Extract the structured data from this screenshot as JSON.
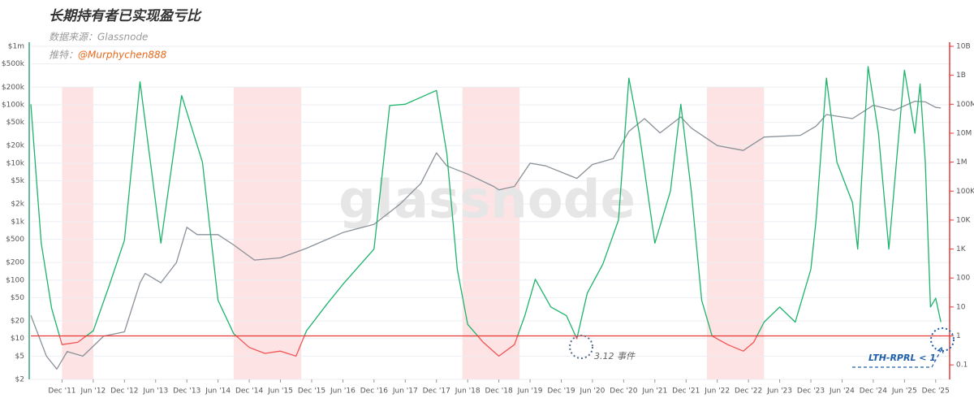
{
  "chart_data": {
    "type": "line",
    "title": "长期持有者已实现盈亏比",
    "subtitle": "数据来源：Glassnode",
    "credit_label": "推特：",
    "credit_handle": "@Murphychen888",
    "watermark": "glassnode",
    "log_scale": true,
    "grid": true,
    "xlim": [
      "2011-06",
      "2026-03"
    ],
    "xticks": [
      {
        "value": "2011-12",
        "label": "Dec '11"
      },
      {
        "value": "2012-06",
        "label": "Jun '12"
      },
      {
        "value": "2012-12",
        "label": "Dec '12"
      },
      {
        "value": "2013-06",
        "label": "Jun '13"
      },
      {
        "value": "2013-12",
        "label": "Dec '13"
      },
      {
        "value": "2014-06",
        "label": "Jun '14"
      },
      {
        "value": "2014-12",
        "label": "Dec '14"
      },
      {
        "value": "2015-06",
        "label": "Jun '15"
      },
      {
        "value": "2015-12",
        "label": "Dec '15"
      },
      {
        "value": "2016-06",
        "label": "Jun '16"
      },
      {
        "value": "2016-12",
        "label": "Dec '16"
      },
      {
        "value": "2017-06",
        "label": "Jun '17"
      },
      {
        "value": "2017-12",
        "label": "Dec '17"
      },
      {
        "value": "2018-06",
        "label": "Jun '18"
      },
      {
        "value": "2018-12",
        "label": "Dec '18"
      },
      {
        "value": "2019-06",
        "label": "Jun '19"
      },
      {
        "value": "2019-12",
        "label": "Dec '19"
      },
      {
        "value": "2020-06",
        "label": "Jun '20"
      },
      {
        "value": "2020-12",
        "label": "Dec '20"
      },
      {
        "value": "2021-06",
        "label": "Jun '21"
      },
      {
        "value": "2021-12",
        "label": "Dec '21"
      },
      {
        "value": "2022-06",
        "label": "Jun '22"
      },
      {
        "value": "2022-12",
        "label": "Dec '22"
      },
      {
        "value": "2023-06",
        "label": "Jun '23"
      },
      {
        "value": "2023-12",
        "label": "Dec '23"
      },
      {
        "value": "2024-06",
        "label": "Jun '24"
      },
      {
        "value": "2024-12",
        "label": "Dec '24"
      },
      {
        "value": "2025-06",
        "label": "Jun '25"
      },
      {
        "value": "2025-12",
        "label": "Dec '25"
      }
    ],
    "ylim": [
      2,
      1000000
    ],
    "yticks": [
      {
        "value": 1000000,
        "label": "$1m"
      },
      {
        "value": 500000,
        "label": "$500k"
      },
      {
        "value": 200000,
        "label": "$200k"
      },
      {
        "value": 100000,
        "label": "$100k"
      },
      {
        "value": 50000,
        "label": "$50k"
      },
      {
        "value": 20000,
        "label": "$20k"
      },
      {
        "value": 10000,
        "label": "$10k"
      },
      {
        "value": 5000,
        "label": "$5k"
      },
      {
        "value": 2000,
        "label": "$2k"
      },
      {
        "value": 1000,
        "label": "$1k"
      },
      {
        "value": 500,
        "label": "$500"
      },
      {
        "value": 200,
        "label": "$200"
      },
      {
        "value": 100,
        "label": "$100"
      },
      {
        "value": 50,
        "label": "$50"
      },
      {
        "value": 20,
        "label": "$20"
      },
      {
        "value": 10,
        "label": "$10"
      },
      {
        "value": 5,
        "label": "$5"
      },
      {
        "value": 2,
        "label": "$2"
      }
    ],
    "y2lim": [
      0.0316,
      10000000000
    ],
    "y2ticks": [
      {
        "value": 10000000000,
        "label": "10B"
      },
      {
        "value": 1000000000,
        "label": "1B"
      },
      {
        "value": 100000000,
        "label": "100M"
      },
      {
        "value": 10000000,
        "label": "10M"
      },
      {
        "value": 1000000,
        "label": "1M"
      },
      {
        "value": 100000,
        "label": "100K"
      },
      {
        "value": 10000,
        "label": "10K"
      },
      {
        "value": 1000,
        "label": "1K"
      },
      100,
      10,
      1,
      0.1
    ],
    "highlight_ranges": [
      [
        "2011-12",
        "2012-06"
      ],
      [
        "2014-09",
        "2015-10"
      ],
      [
        "2018-05",
        "2019-04"
      ],
      [
        "2022-04",
        "2023-03"
      ]
    ],
    "highlight_color": "#fde3e3",
    "reference_line": {
      "value": 1,
      "axis": "y2",
      "color": "#e53935"
    },
    "below_reference_color": "#f05454",
    "series": [
      {
        "color": "#8a9199",
        "axis": "y",
        "x": [
          "2011-06",
          "2011-09",
          "2011-11",
          "2012-01",
          "2012-04",
          "2012-08",
          "2012-12",
          "2013-03",
          "2013-04",
          "2013-07",
          "2013-10",
          "2013-12",
          "2014-02",
          "2014-06",
          "2014-09",
          "2015-01",
          "2015-06",
          "2015-11",
          "2016-06",
          "2016-12",
          "2017-05",
          "2017-09",
          "2017-12",
          "2018-02",
          "2018-06",
          "2018-11",
          "2018-12",
          "2019-03",
          "2019-06",
          "2019-09",
          "2020-03",
          "2020-06",
          "2020-10",
          "2021-01",
          "2021-04",
          "2021-07",
          "2021-11",
          "2022-01",
          "2022-06",
          "2022-11",
          "2023-03",
          "2023-10",
          "2024-01",
          "2024-03",
          "2024-08",
          "2024-12",
          "2025-04",
          "2025-08",
          "2025-10",
          "2025-12",
          "2026-01"
        ],
        "values": [
          25,
          5,
          3,
          6,
          5,
          11,
          13,
          90,
          130,
          90,
          200,
          800,
          600,
          600,
          400,
          220,
          240,
          350,
          650,
          900,
          2000,
          4500,
          15000,
          9000,
          6500,
          4000,
          3500,
          4000,
          10000,
          9000,
          5500,
          9500,
          12000,
          35000,
          58000,
          33000,
          62000,
          40000,
          20000,
          16500,
          28000,
          30000,
          43000,
          68000,
          58000,
          98000,
          80000,
          115000,
          112000,
          90000,
          88000
        ]
      },
      {
        "color": "#1db36b",
        "axis": "y2",
        "x": [
          "2011-06",
          "2011-08",
          "2011-10",
          "2011-12",
          "2012-03",
          "2012-06",
          "2012-09",
          "2012-12",
          "2013-03",
          "2013-07",
          "2013-11",
          "2014-03",
          "2014-06",
          "2014-09",
          "2014-12",
          "2015-03",
          "2015-06",
          "2015-09",
          "2015-11",
          "2016-03",
          "2016-06",
          "2016-12",
          "2017-03",
          "2017-06",
          "2017-12",
          "2018-02",
          "2018-04",
          "2018-06",
          "2018-09",
          "2018-12",
          "2019-03",
          "2019-05",
          "2019-07",
          "2019-10",
          "2020-01",
          "2020-03",
          "2020-05",
          "2020-08",
          "2020-11",
          "2021-01",
          "2021-03",
          "2021-06",
          "2021-09",
          "2021-11",
          "2022-01",
          "2022-03",
          "2022-05",
          "2022-08",
          "2022-11",
          "2023-01",
          "2023-03",
          "2023-06",
          "2023-09",
          "2023-12",
          "2024-01",
          "2024-03",
          "2024-05",
          "2024-08",
          "2024-09",
          "2024-11",
          "2025-01",
          "2025-03",
          "2025-06",
          "2025-08",
          "2025-09",
          "2025-10",
          "2025-11",
          "2025-12",
          "2026-01"
        ],
        "values": [
          100000000,
          1600,
          9,
          0.5,
          0.6,
          1.5,
          50,
          2000,
          600000000,
          1600,
          200000000,
          1000000,
          17,
          1.2,
          0.4,
          0.25,
          0.3,
          0.2,
          1.5,
          13,
          60,
          1000,
          90000000,
          100000000,
          300000000,
          2000000,
          200,
          2.5,
          0.6,
          0.2,
          0.5,
          5,
          90,
          10,
          5,
          0.8,
          30,
          300,
          10000,
          800000000,
          10000000,
          1600,
          100000,
          100000000,
          100000,
          17,
          1,
          0.5,
          0.3,
          0.6,
          3,
          10,
          3,
          200,
          10000,
          800000000,
          1000000,
          40000,
          1000,
          2000000000,
          10000000,
          1000,
          1500000000,
          10000000,
          500000000,
          1000000,
          10,
          20,
          3
        ]
      }
    ],
    "annotations": [
      "3.12 事件",
      "LTH-RPRL < 1"
    ]
  }
}
